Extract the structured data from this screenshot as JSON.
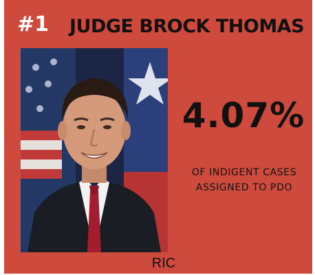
{
  "rank": "#1",
  "name": "JUDGE BROCK THOMAS",
  "stat": {
    "value": "4.07%",
    "description": "OF INDIGENT CASES ASSIGNED TO PDO"
  },
  "photo": {
    "subject": "portrait of a man in a dark suit and red tie in front of flags"
  },
  "caption": "RIC",
  "colors": {
    "background": "#cd4a3d",
    "rank_text": "#ffffff",
    "text": "#111111"
  }
}
